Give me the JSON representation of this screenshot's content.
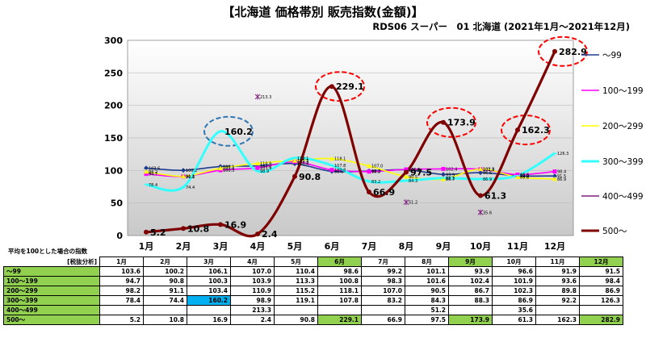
{
  "header": {
    "title": "【北海道 価格帯別 販売指数(金額)】",
    "subtitle": "RDS06 スーパー　01 北海道 (2021年1月～2021年12月)"
  },
  "table_notes": {
    "line1": "平均を100とした場合の指数",
    "line2": "[税抜分析]"
  },
  "colors": {
    "~99": "#1f3c8f",
    "100~199": "#ff00ff",
    "200~299": "#ffff00",
    "300~399": "#33ffff",
    "400~499": "#7f1f7f",
    "500~": "#7f0000",
    "highlight_green": "#92d050",
    "highlight_blue": "#00b0f0",
    "circle_red": "#ff0000",
    "circle_blue": "#2e75b6"
  },
  "chart_data": {
    "type": "line",
    "categories": [
      "1月",
      "2月",
      "3月",
      "4月",
      "5月",
      "6月",
      "7月",
      "8月",
      "9月",
      "10月",
      "11月",
      "12月"
    ],
    "ylim": [
      0,
      300
    ],
    "yticks": [
      "0",
      "50",
      "100",
      "150",
      "200",
      "250",
      "300"
    ],
    "legend_position": "right",
    "series": [
      {
        "name": "～99",
        "values": [
          103.6,
          100.2,
          106.1,
          107.0,
          110.4,
          98.6,
          99.2,
          101.1,
          93.9,
          96.6,
          91.9,
          91.5
        ]
      },
      {
        "name": "100～199",
        "values": [
          94.7,
          90.8,
          100.3,
          103.9,
          113.3,
          100.8,
          98.3,
          101.6,
          102.4,
          101.9,
          93.6,
          98.4
        ]
      },
      {
        "name": "200～299",
        "values": [
          98.2,
          91.1,
          103.4,
          110.9,
          115.2,
          118.1,
          107.0,
          90.5,
          86.7,
          102.3,
          89.8,
          86.9
        ]
      },
      {
        "name": "300～399",
        "values": [
          78.4,
          74.4,
          160.2,
          98.9,
          119.1,
          107.8,
          83.2,
          84.3,
          88.3,
          86.9,
          92.2,
          126.3
        ]
      },
      {
        "name": "400～499",
        "values": [
          null,
          null,
          null,
          213.3,
          null,
          null,
          null,
          51.2,
          null,
          35.6,
          null,
          null
        ]
      },
      {
        "name": "500～",
        "values": [
          5.2,
          10.8,
          16.9,
          2.4,
          90.8,
          229.1,
          66.9,
          97.5,
          173.9,
          61.3,
          162.3,
          282.9
        ]
      }
    ]
  },
  "table": {
    "headers": [
      "1月",
      "2月",
      "3月",
      "4月",
      "5月",
      "6月",
      "7月",
      "8月",
      "9月",
      "10月",
      "11月",
      "12月"
    ],
    "rows": [
      {
        "label": "～99",
        "cells": [
          "103.6",
          "100.2",
          "106.1",
          "107.0",
          "110.4",
          "98.6",
          "99.2",
          "101.1",
          "93.9",
          "96.6",
          "91.9",
          "91.5"
        ]
      },
      {
        "label": "100～199",
        "cells": [
          "94.7",
          "90.8",
          "100.3",
          "103.9",
          "113.3",
          "100.8",
          "98.3",
          "101.6",
          "102.4",
          "101.9",
          "93.6",
          "98.4"
        ]
      },
      {
        "label": "200～299",
        "cells": [
          "98.2",
          "91.1",
          "103.4",
          "110.9",
          "115.2",
          "118.1",
          "107.0",
          "90.5",
          "86.7",
          "102.3",
          "89.8",
          "86.9"
        ]
      },
      {
        "label": "300～399",
        "cells": [
          "78.4",
          "74.4",
          "160.2",
          "98.9",
          "119.1",
          "107.8",
          "83.2",
          "84.3",
          "88.3",
          "86.9",
          "92.2",
          "126.3"
        ]
      },
      {
        "label": "400～499",
        "cells": [
          "",
          "",
          "",
          "213.3",
          "",
          "",
          "",
          "51.2",
          "",
          "35.6",
          "",
          ""
        ]
      },
      {
        "label": "500～",
        "cells": [
          "5.2",
          "10.8",
          "16.9",
          "2.4",
          "90.8",
          "229.1",
          "66.9",
          "97.5",
          "173.9",
          "61.3",
          "162.3",
          "282.9"
        ]
      }
    ]
  }
}
